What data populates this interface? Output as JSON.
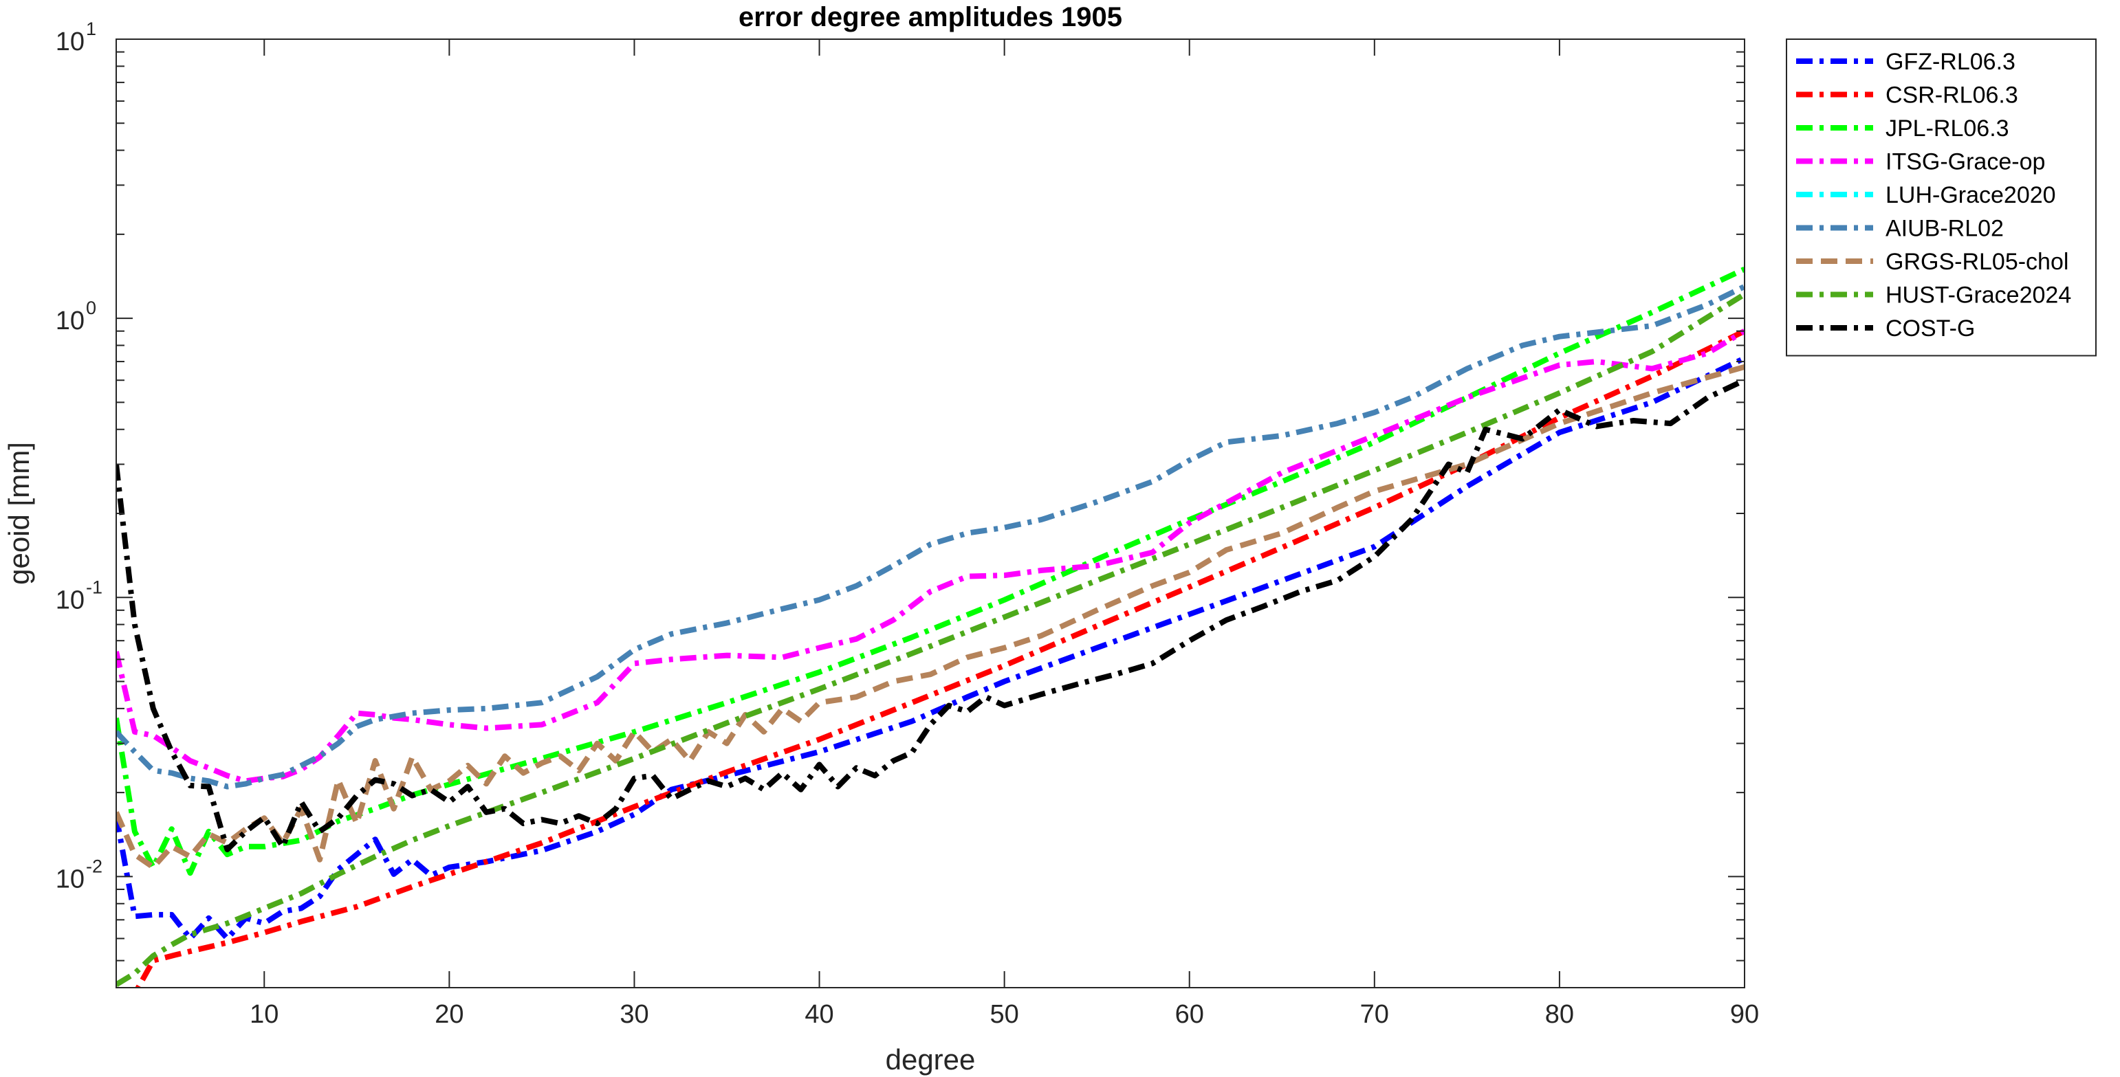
{
  "chart_data": {
    "type": "line",
    "title": "error degree amplitudes 1905",
    "xlabel": "degree",
    "ylabel": "geoid [mm]",
    "xlim": [
      2,
      90
    ],
    "ylim": [
      0.004,
      10
    ],
    "yscale": "log",
    "grid": false,
    "legend_position": "outside-right",
    "x_ticks": [
      10,
      20,
      30,
      40,
      50,
      60,
      70,
      80,
      90
    ],
    "x_tick_labels": [
      "10",
      "20",
      "30",
      "40",
      "50",
      "60",
      "70",
      "80",
      "90"
    ],
    "y_ticks": [
      0.01,
      0.1,
      1,
      10
    ],
    "y_tick_labels": [
      {
        "base": "10",
        "exp": "-2"
      },
      {
        "base": "10",
        "exp": "-1"
      },
      {
        "base": "10",
        "exp": "0"
      },
      {
        "base": "10",
        "exp": "1"
      }
    ],
    "series": [
      {
        "name": "GFZ-RL06.3",
        "color": "#0000ff",
        "dash": "dashdot",
        "x": [
          2,
          3,
          4,
          5,
          6,
          7,
          8,
          9,
          10,
          11,
          12,
          13,
          14,
          15,
          16,
          17,
          18,
          19,
          20,
          22,
          25,
          28,
          30,
          32,
          35,
          40,
          45,
          48,
          50,
          55,
          60,
          65,
          70,
          75,
          80,
          85,
          90
        ],
        "y": [
          0.0165,
          0.0072,
          0.0073,
          0.0073,
          0.006,
          0.0071,
          0.006,
          0.0071,
          0.0068,
          0.0075,
          0.0077,
          0.0085,
          0.0106,
          0.012,
          0.0136,
          0.0102,
          0.0115,
          0.0101,
          0.0108,
          0.0113,
          0.0124,
          0.0145,
          0.0167,
          0.0205,
          0.023,
          0.028,
          0.036,
          0.044,
          0.05,
          0.066,
          0.087,
          0.115,
          0.152,
          0.25,
          0.39,
          0.5,
          0.72
        ]
      },
      {
        "name": "CSR-RL06.3",
        "color": "#ff0000",
        "dash": "dashdot",
        "x": [
          2,
          3,
          4,
          5,
          6,
          8,
          10,
          12,
          15,
          18,
          20,
          25,
          30,
          35,
          40,
          45,
          50,
          55,
          60,
          65,
          70,
          75,
          80,
          85,
          90
        ],
        "y": [
          0.0038,
          0.0038,
          0.005,
          0.0052,
          0.0054,
          0.0058,
          0.0063,
          0.0069,
          0.0078,
          0.0092,
          0.0102,
          0.0132,
          0.0178,
          0.0237,
          0.031,
          0.042,
          0.057,
          0.079,
          0.109,
          0.151,
          0.21,
          0.3,
          0.44,
          0.62,
          0.9
        ]
      },
      {
        "name": "JPL-RL06.3",
        "color": "#00ff00",
        "dash": "dashdot",
        "x": [
          2,
          3,
          4,
          5,
          6,
          7,
          8,
          9,
          10,
          12,
          14,
          16,
          18,
          20,
          22,
          25,
          30,
          35,
          40,
          45,
          50,
          55,
          60,
          65,
          70,
          75,
          80,
          85,
          90
        ],
        "y": [
          0.037,
          0.0145,
          0.0108,
          0.0148,
          0.0103,
          0.0145,
          0.012,
          0.0128,
          0.0128,
          0.0135,
          0.0158,
          0.0175,
          0.0196,
          0.0214,
          0.0233,
          0.0265,
          0.033,
          0.042,
          0.054,
          0.072,
          0.098,
          0.137,
          0.19,
          0.26,
          0.36,
          0.52,
          0.75,
          1.05,
          1.5
        ]
      },
      {
        "name": "ITSG-Grace-op",
        "color": "#ff00ff",
        "dash": "dashdot",
        "x": [
          2,
          3,
          4,
          5,
          6,
          7,
          8,
          9,
          10,
          11,
          12,
          13,
          14,
          15,
          16,
          17,
          18,
          20,
          22,
          25,
          28,
          30,
          32,
          35,
          38,
          40,
          42,
          44,
          46,
          48,
          50,
          52,
          55,
          58,
          60,
          65,
          70,
          75,
          80,
          82,
          85,
          88,
          90
        ],
        "y": [
          0.064,
          0.033,
          0.032,
          0.029,
          0.026,
          0.0245,
          0.023,
          0.022,
          0.0225,
          0.0228,
          0.0242,
          0.0268,
          0.032,
          0.0385,
          0.038,
          0.037,
          0.0365,
          0.035,
          0.034,
          0.035,
          0.042,
          0.058,
          0.06,
          0.062,
          0.061,
          0.066,
          0.071,
          0.083,
          0.105,
          0.119,
          0.12,
          0.125,
          0.13,
          0.145,
          0.185,
          0.28,
          0.38,
          0.52,
          0.68,
          0.7,
          0.66,
          0.75,
          0.9
        ]
      },
      {
        "name": "LUH-Grace2020",
        "color": "#00ffff",
        "dash": "dashdot",
        "x": [],
        "y": []
      },
      {
        "name": "AIUB-RL02",
        "color": "#4682b4",
        "dash": "dashdot",
        "x": [
          2,
          3,
          4,
          5,
          6,
          7,
          8,
          9,
          10,
          11,
          12,
          13,
          14,
          15,
          16,
          18,
          20,
          22,
          25,
          28,
          30,
          32,
          35,
          38,
          40,
          42,
          44,
          46,
          48,
          50,
          52,
          55,
          58,
          60,
          62,
          65,
          68,
          70,
          72,
          75,
          78,
          80,
          85,
          88,
          90
        ],
        "y": [
          0.033,
          0.028,
          0.024,
          0.0235,
          0.0225,
          0.022,
          0.021,
          0.0215,
          0.0225,
          0.0232,
          0.025,
          0.027,
          0.03,
          0.0345,
          0.0365,
          0.0385,
          0.0395,
          0.04,
          0.042,
          0.052,
          0.065,
          0.074,
          0.081,
          0.091,
          0.098,
          0.11,
          0.13,
          0.155,
          0.17,
          0.178,
          0.19,
          0.22,
          0.26,
          0.31,
          0.36,
          0.38,
          0.42,
          0.46,
          0.52,
          0.66,
          0.8,
          0.86,
          0.94,
          1.12,
          1.3
        ]
      },
      {
        "name": "GRGS-RL05-chol",
        "color": "#b5835a",
        "dash": "dash",
        "x": [
          2,
          3,
          4,
          5,
          6,
          7,
          8,
          9,
          10,
          11,
          12,
          13,
          14,
          15,
          16,
          17,
          18,
          19,
          20,
          21,
          22,
          23,
          24,
          25,
          26,
          27,
          28,
          29,
          30,
          31,
          32,
          33,
          34,
          35,
          36,
          37,
          38,
          39,
          40,
          42,
          44,
          46,
          48,
          50,
          52,
          55,
          58,
          60,
          62,
          65,
          68,
          70,
          75,
          80,
          85,
          90
        ],
        "y": [
          0.017,
          0.012,
          0.0108,
          0.0128,
          0.0118,
          0.0142,
          0.0132,
          0.0148,
          0.0162,
          0.0132,
          0.0175,
          0.0115,
          0.0222,
          0.0155,
          0.026,
          0.0175,
          0.0268,
          0.0205,
          0.022,
          0.025,
          0.0215,
          0.027,
          0.0235,
          0.0255,
          0.027,
          0.024,
          0.03,
          0.026,
          0.033,
          0.028,
          0.031,
          0.026,
          0.033,
          0.03,
          0.038,
          0.033,
          0.04,
          0.036,
          0.042,
          0.044,
          0.05,
          0.053,
          0.061,
          0.066,
          0.073,
          0.09,
          0.11,
          0.123,
          0.148,
          0.17,
          0.21,
          0.24,
          0.3,
          0.42,
          0.54,
          0.67
        ]
      },
      {
        "name": "HUST-Grace2024",
        "color": "#4daa1a",
        "dash": "dashdot",
        "x": [
          2,
          3,
          4,
          5,
          6,
          8,
          10,
          12,
          14,
          16,
          18,
          20,
          25,
          30,
          35,
          40,
          45,
          50,
          55,
          60,
          65,
          70,
          75,
          80,
          85,
          90
        ],
        "y": [
          0.0041,
          0.0045,
          0.0052,
          0.0057,
          0.0062,
          0.0068,
          0.0077,
          0.0087,
          0.0102,
          0.0118,
          0.0135,
          0.0152,
          0.02,
          0.0265,
          0.0355,
          0.047,
          0.063,
          0.085,
          0.115,
          0.155,
          0.21,
          0.285,
          0.39,
          0.54,
          0.76,
          1.22
        ]
      },
      {
        "name": "COST-G",
        "color": "#000000",
        "dash": "dashdot",
        "x": [
          2,
          3,
          4,
          5,
          6,
          7,
          8,
          9,
          10,
          11,
          12,
          13,
          14,
          15,
          16,
          17,
          18,
          19,
          20,
          21,
          22,
          23,
          24,
          25,
          26,
          27,
          28,
          29,
          30,
          31,
          32,
          33,
          34,
          35,
          36,
          37,
          38,
          39,
          40,
          41,
          42,
          43,
          44,
          45,
          46,
          47,
          48,
          49,
          50,
          52,
          54,
          56,
          58,
          60,
          62,
          64,
          66,
          68,
          70,
          72,
          74,
          75,
          76,
          78,
          80,
          82,
          84,
          86,
          88,
          90
        ],
        "y": [
          0.3,
          0.08,
          0.04,
          0.028,
          0.0212,
          0.021,
          0.0125,
          0.0145,
          0.0163,
          0.0128,
          0.0185,
          0.0145,
          0.0162,
          0.0195,
          0.0222,
          0.0215,
          0.0195,
          0.0205,
          0.0185,
          0.021,
          0.017,
          0.0175,
          0.0155,
          0.016,
          0.0155,
          0.0165,
          0.0155,
          0.0175,
          0.0225,
          0.023,
          0.019,
          0.0205,
          0.022,
          0.021,
          0.0225,
          0.0205,
          0.0235,
          0.0205,
          0.0252,
          0.021,
          0.0245,
          0.023,
          0.026,
          0.0278,
          0.035,
          0.041,
          0.039,
          0.044,
          0.041,
          0.045,
          0.049,
          0.053,
          0.058,
          0.07,
          0.083,
          0.093,
          0.105,
          0.115,
          0.14,
          0.19,
          0.3,
          0.28,
          0.4,
          0.37,
          0.47,
          0.41,
          0.43,
          0.42,
          0.52,
          0.6
        ]
      }
    ]
  }
}
